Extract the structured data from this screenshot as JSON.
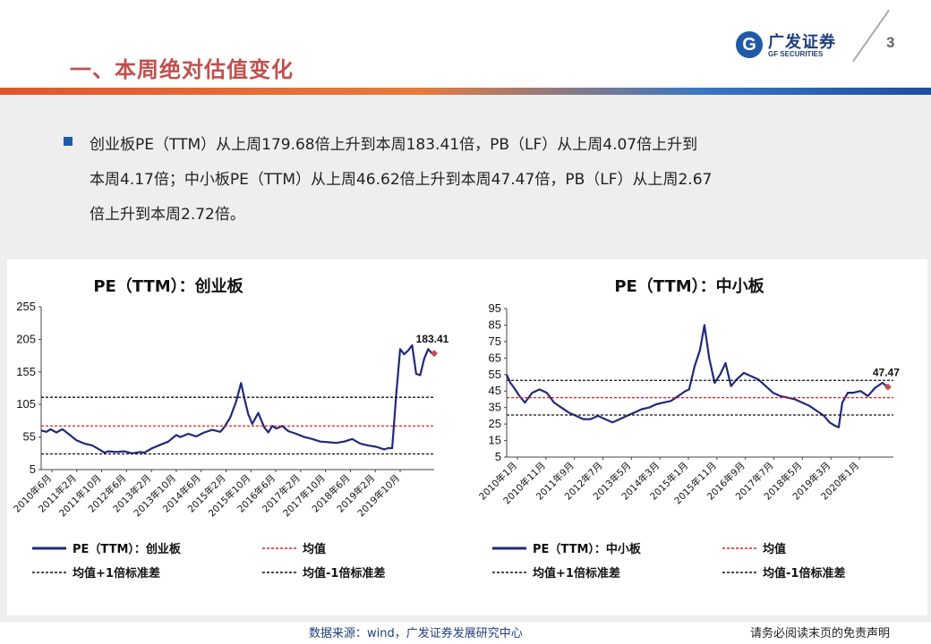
{
  "header": {
    "title": "一、本周绝对估值变化",
    "logo_mark": "G",
    "logo_cn": "广发证券",
    "logo_en": "GF SECURITIES",
    "page_number": "3"
  },
  "summary": {
    "lines": [
      "创业板PE（TTM）从上周179.68倍上升到本周183.41倍，PB（LF）从上周4.07倍上升到",
      "本周4.17倍；中小板PE（TTM）从上周46.62倍上升到本周47.47倍，PB（LF）从上周2.67",
      "倍上升到本周2.72倍。"
    ]
  },
  "chart_data": [
    {
      "type": "line",
      "title": "PE（TTM）：创业板",
      "ylim": [
        5,
        255
      ],
      "yticks": [
        "255",
        "205",
        "155",
        "105",
        "55",
        "5"
      ],
      "xticks": [
        "2010年6月",
        "2011年2月",
        "2011年10月",
        "2012年6月",
        "2013年2月",
        "2013年10月",
        "2014年6月",
        "2015年2月",
        "2015年10月",
        "2016年6月",
        "2017年2月",
        "2017年10月",
        "2018年6月",
        "2019年2月",
        "2019年10月"
      ],
      "x_range": [
        2010.42,
        2020.25
      ],
      "series": [
        {
          "name": "PE（TTM）：创业板",
          "color": "#1f2a7a",
          "x": [
            2010.42,
            2010.55,
            2010.65,
            2010.8,
            2010.95,
            2011.1,
            2011.3,
            2011.5,
            2011.7,
            2011.9,
            2012.0,
            2012.1,
            2012.3,
            2012.5,
            2012.7,
            2012.9,
            2013.0,
            2013.2,
            2013.4,
            2013.6,
            2013.8,
            2013.9,
            2014.1,
            2014.3,
            2014.5,
            2014.7,
            2014.9,
            2015.0,
            2015.15,
            2015.3,
            2015.42,
            2015.5,
            2015.6,
            2015.7,
            2015.85,
            2016.0,
            2016.1,
            2016.2,
            2016.3,
            2016.45,
            2016.6,
            2016.8,
            2017.0,
            2017.2,
            2017.4,
            2017.6,
            2017.8,
            2018.0,
            2018.2,
            2018.4,
            2018.6,
            2018.8,
            2019.0,
            2019.1,
            2019.2,
            2019.3,
            2019.4,
            2019.5,
            2019.6,
            2019.7,
            2019.8,
            2019.9,
            2020.0,
            2020.1,
            2020.2
          ],
          "values": [
            65,
            63,
            67,
            62,
            67,
            60,
            50,
            45,
            42,
            35,
            31,
            33,
            32,
            33,
            30,
            32,
            31,
            38,
            43,
            48,
            58,
            55,
            60,
            56,
            62,
            66,
            63,
            70,
            85,
            110,
            138,
            115,
            90,
            75,
            92,
            70,
            62,
            72,
            68,
            72,
            64,
            60,
            55,
            52,
            48,
            47,
            46,
            48,
            52,
            45,
            42,
            40,
            36,
            38,
            38,
            120,
            190,
            182,
            188,
            196,
            152,
            150,
            175,
            190,
            183
          ]
        },
        {
          "name": "均值",
          "color": "#e02020",
          "dashed": true,
          "constant": 72
        },
        {
          "name": "均值+1倍标准差",
          "color": "#111111",
          "dashed": true,
          "constant": 116
        },
        {
          "name": "均值-1倍标准差",
          "color": "#111111",
          "dashed": true,
          "constant": 29
        }
      ],
      "annotation": {
        "label": "183.41",
        "x": 2020.25,
        "y": 183.41
      }
    },
    {
      "type": "line",
      "title": "PE（TTM）：中小板",
      "ylim": [
        5,
        95
      ],
      "yticks": [
        "95",
        "85",
        "75",
        "65",
        "55",
        "45",
        "35",
        "25",
        "15",
        "5"
      ],
      "xticks": [
        "2010年1月",
        "2010年11月",
        "2011年9月",
        "2012年7月",
        "2013年5月",
        "2014年3月",
        "2015年1月",
        "2015年11月",
        "2016年9月",
        "2017年7月",
        "2018年5月",
        "2019年3月",
        "2020年1月"
      ],
      "x_range": [
        2010.0,
        2020.6
      ],
      "series": [
        {
          "name": "PE（TTM）：中小板",
          "color": "#1f2a7a",
          "x": [
            2010.0,
            2010.1,
            2010.2,
            2010.35,
            2010.5,
            2010.7,
            2010.9,
            2011.1,
            2011.3,
            2011.5,
            2011.7,
            2011.9,
            2012.1,
            2012.3,
            2012.5,
            2012.7,
            2012.9,
            2013.1,
            2013.3,
            2013.5,
            2013.7,
            2013.9,
            2014.1,
            2014.3,
            2014.5,
            2014.7,
            2014.9,
            2015.0,
            2015.15,
            2015.3,
            2015.42,
            2015.55,
            2015.7,
            2015.85,
            2016.0,
            2016.15,
            2016.3,
            2016.5,
            2016.7,
            2016.9,
            2017.1,
            2017.3,
            2017.5,
            2017.7,
            2017.9,
            2018.1,
            2018.3,
            2018.5,
            2018.7,
            2018.85,
            2019.0,
            2019.1,
            2019.2,
            2019.35,
            2019.5,
            2019.7,
            2019.9,
            2020.1,
            2020.3,
            2020.45
          ],
          "values": [
            55,
            50,
            47,
            42,
            38,
            44,
            46,
            44,
            38,
            35,
            32,
            30,
            28,
            28,
            30,
            28,
            26,
            28,
            30,
            32,
            34,
            35,
            37,
            38,
            39,
            42,
            45,
            46,
            60,
            70,
            85,
            65,
            50,
            55,
            62,
            48,
            52,
            56,
            54,
            52,
            48,
            44,
            42,
            41,
            40,
            38,
            36,
            33,
            30,
            26,
            24,
            23,
            38,
            44,
            44,
            45,
            42,
            47,
            50,
            47.47
          ]
        },
        {
          "name": "均值",
          "color": "#e02020",
          "dashed": true,
          "constant": 41
        },
        {
          "name": "均值+1倍标准差",
          "color": "#111111",
          "dashed": true,
          "constant": 51.5
        },
        {
          "name": "均值-1倍标准差",
          "color": "#111111",
          "dashed": true,
          "constant": 30.5
        }
      ],
      "annotation": {
        "label": "47.47",
        "x": 2020.45,
        "y": 47.47
      }
    }
  ],
  "legends": {
    "left": [
      "PE（TTM）：创业板",
      "均值",
      "均值+1倍标准差",
      "均值-1倍标准差"
    ],
    "right": [
      "PE（TTM）：中小板",
      "均值",
      "均值+1倍标准差",
      "均值-1倍标准差"
    ]
  },
  "footer": {
    "source": "数据来源：wind，广发证券发展研究中心",
    "disclaimer": "请务必阅读末页的免责声明"
  }
}
